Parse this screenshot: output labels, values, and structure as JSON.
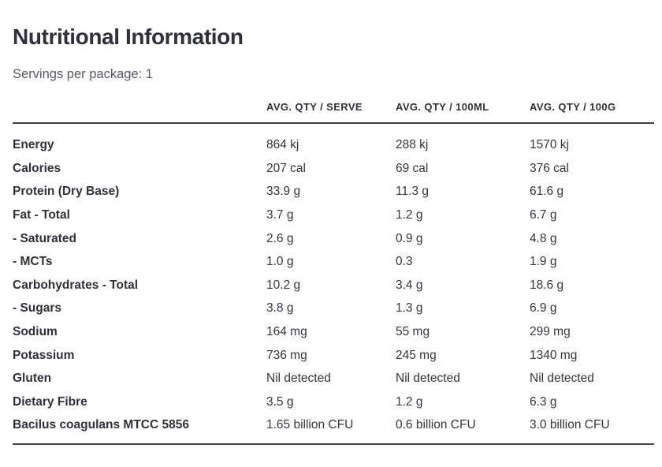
{
  "page": {
    "title": "Nutritional Information",
    "subtitle": "Servings per package: 1"
  },
  "table": {
    "columns": [
      "",
      "AVG. QTY / SERVE",
      "AVG. QTY / 100ML",
      "AVG. QTY / 100G"
    ],
    "rows": [
      {
        "label": "Energy",
        "serve": "864 kj",
        "per_100ml": "288 kj",
        "per_100g": "1570 kj"
      },
      {
        "label": "Calories",
        "serve": "207 cal",
        "per_100ml": "69 cal",
        "per_100g": "376 cal"
      },
      {
        "label": "Protein (Dry Base)",
        "serve": "33.9 g",
        "per_100ml": "11.3 g",
        "per_100g": "61.6 g"
      },
      {
        "label": "Fat - Total",
        "serve": "3.7 g",
        "per_100ml": "1.2 g",
        "per_100g": "6.7 g"
      },
      {
        "label": "- Saturated",
        "serve": "2.6 g",
        "per_100ml": "0.9 g",
        "per_100g": "4.8 g"
      },
      {
        "label": "- MCTs",
        "serve": "1.0 g",
        "per_100ml": "0.3",
        "per_100g": "1.9 g"
      },
      {
        "label": "Carbohydrates - Total",
        "serve": "10.2 g",
        "per_100ml": "3.4 g",
        "per_100g": "18.6 g"
      },
      {
        "label": "- Sugars",
        "serve": "3.8 g",
        "per_100ml": "1.3 g",
        "per_100g": "6.9 g"
      },
      {
        "label": "Sodium",
        "serve": "164 mg",
        "per_100ml": "55 mg",
        "per_100g": "299 mg"
      },
      {
        "label": "Potassium",
        "serve": "736 mg",
        "per_100ml": "245 mg",
        "per_100g": "1340 mg"
      },
      {
        "label": "Gluten",
        "serve": "Nil detected",
        "per_100ml": "Nil detected",
        "per_100g": "Nil detected"
      },
      {
        "label": "Dietary Fibre",
        "serve": "3.5 g",
        "per_100ml": "1.2 g",
        "per_100g": "6.3 g"
      },
      {
        "label": "Bacilus coagulans MTCC 5856",
        "serve": "1.65 billion CFU",
        "per_100ml": "0.6 billion CFU",
        "per_100g": "3.0 billion CFU"
      }
    ]
  },
  "colors": {
    "text_dark": "#2e3137",
    "text_value": "#33363c",
    "text_subtitle": "#555962",
    "rule": "#3d4046",
    "background": "#ffffff"
  }
}
